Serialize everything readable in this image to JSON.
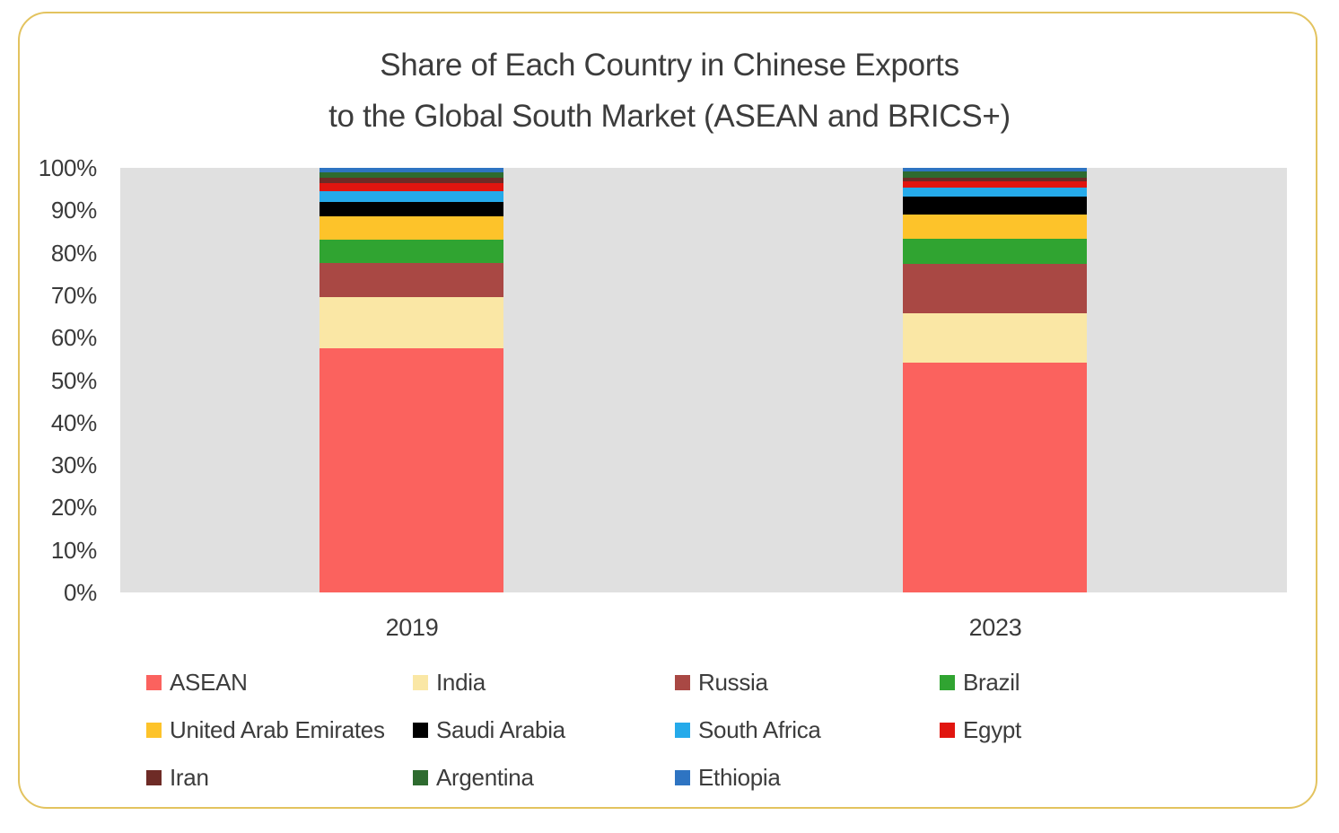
{
  "frame": {
    "border_color": "#E3C35F",
    "background": "#FFFFFF"
  },
  "title": {
    "line1": "Share of Each Country in Chinese Exports",
    "line2": "to the Global South Market (ASEAN and BRICS+)",
    "color": "#3C3C3C"
  },
  "chart_data": {
    "type": "bar",
    "stacked": true,
    "percent_stacked": true,
    "title": "Share of Each Country in Chinese Exports to the Global South Market (ASEAN and BRICS+)",
    "categories": [
      "2019",
      "2023"
    ],
    "series": [
      {
        "name": "ASEAN",
        "color": "#FB625E",
        "values": [
          57.5,
          54.2
        ]
      },
      {
        "name": "India",
        "color": "#FAE7A5",
        "values": [
          12.0,
          11.6
        ]
      },
      {
        "name": "Russia",
        "color": "#A94844",
        "values": [
          8.0,
          11.6
        ]
      },
      {
        "name": "Brazil",
        "color": "#30A431",
        "values": [
          5.5,
          5.8
        ]
      },
      {
        "name": "United Arab Emirates",
        "color": "#FDC32A",
        "values": [
          5.5,
          5.7
        ]
      },
      {
        "name": "Saudi Arabia",
        "color": "#000000",
        "values": [
          3.5,
          4.4
        ]
      },
      {
        "name": "South Africa",
        "color": "#25AAEA",
        "values": [
          2.5,
          2.1
        ]
      },
      {
        "name": "Egypt",
        "color": "#E1150F",
        "values": [
          2.0,
          1.5
        ]
      },
      {
        "name": "Iran",
        "color": "#6E2B26",
        "values": [
          1.2,
          0.7
        ]
      },
      {
        "name": "Argentina",
        "color": "#2E6B2F",
        "values": [
          1.3,
          1.5
        ]
      },
      {
        "name": "Ethiopia",
        "color": "#2E74C2",
        "values": [
          1.0,
          0.9
        ]
      }
    ],
    "xlabel": "",
    "ylabel": "",
    "ylim": [
      0,
      100
    ],
    "ytick_labels": [
      "100%",
      "90%",
      "80%",
      "70%",
      "60%",
      "50%",
      "40%",
      "30%",
      "20%",
      "10%",
      "0%"
    ],
    "grid": false,
    "plot_background": "#E0E0E0",
    "legend_position": "bottom",
    "legend_columns": 4
  }
}
